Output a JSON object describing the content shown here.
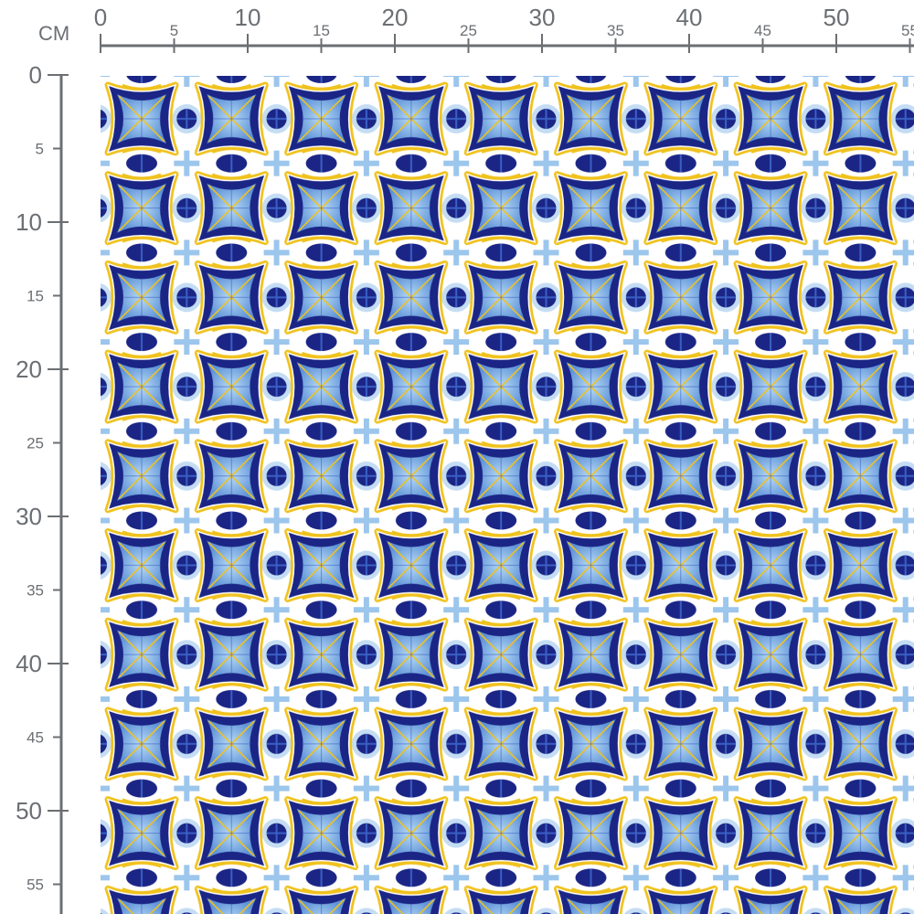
{
  "ruler": {
    "unit": "CM",
    "top_labels": [
      {
        "cm": 0,
        "text": "0",
        "major": true
      },
      {
        "cm": 5,
        "text": "5",
        "major": false
      },
      {
        "cm": 10,
        "text": "10",
        "major": true
      },
      {
        "cm": 15,
        "text": "15",
        "major": false
      },
      {
        "cm": 20,
        "text": "20",
        "major": true
      },
      {
        "cm": 25,
        "text": "25",
        "major": false
      },
      {
        "cm": 30,
        "text": "30",
        "major": true
      },
      {
        "cm": 35,
        "text": "35",
        "major": false
      },
      {
        "cm": 40,
        "text": "40",
        "major": true
      },
      {
        "cm": 45,
        "text": "45",
        "major": false
      },
      {
        "cm": 50,
        "text": "50",
        "major": true
      },
      {
        "cm": 55,
        "text": "55",
        "major": false
      }
    ],
    "left_labels": [
      {
        "cm": 0,
        "text": "0",
        "major": true
      },
      {
        "cm": 5,
        "text": "5",
        "major": false
      },
      {
        "cm": 10,
        "text": "10",
        "major": true
      },
      {
        "cm": 15,
        "text": "15",
        "major": false
      },
      {
        "cm": 20,
        "text": "20",
        "major": true
      },
      {
        "cm": 25,
        "text": "25",
        "major": false
      },
      {
        "cm": 30,
        "text": "30",
        "major": true
      },
      {
        "cm": 35,
        "text": "35",
        "major": false
      },
      {
        "cm": 40,
        "text": "40",
        "major": true
      },
      {
        "cm": 45,
        "text": "45",
        "major": false
      },
      {
        "cm": 50,
        "text": "50",
        "major": true
      },
      {
        "cm": 55,
        "text": "55",
        "major": false
      }
    ]
  },
  "pattern": {
    "name": "blue-yellow-azulejo-tile",
    "colors": {
      "navy": "#1b2585",
      "blue": "#3a5fc4",
      "light_blue": "#9cc6ec",
      "yellow": "#f0c21e",
      "white": "#ffffff",
      "ruler": "#6b6f73"
    }
  }
}
